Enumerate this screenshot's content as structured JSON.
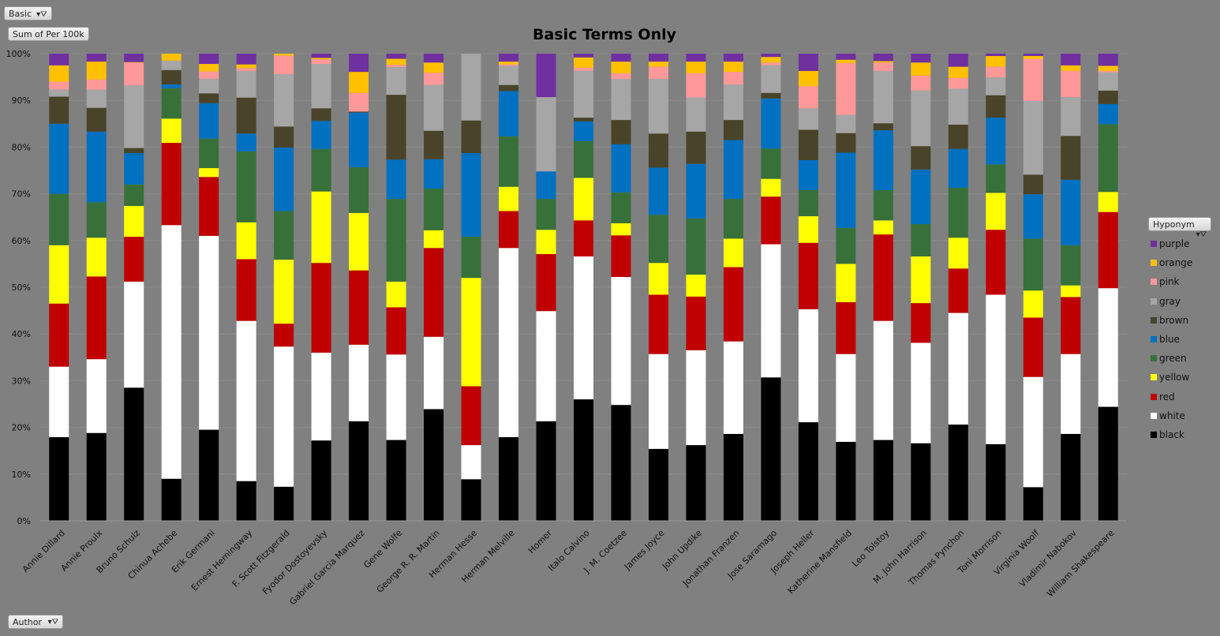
{
  "filters": {
    "report_filter": "Basic",
    "value_field": "Sum of Per 100k",
    "legend_field": "Hyponym",
    "axis_field": "Author"
  },
  "chart_data": {
    "type": "bar",
    "stacked": "percent",
    "title": "Basic Terms Only",
    "xlabel": "",
    "ylabel": "",
    "ylim": [
      0,
      100
    ],
    "yticks": [
      "0%",
      "10%",
      "20%",
      "30%",
      "40%",
      "50%",
      "60%",
      "70%",
      "80%",
      "90%",
      "100%"
    ],
    "grid": true,
    "legend_position": "right",
    "categories": [
      "Annie Dillard",
      "Annie Proulx",
      "Bruno Schulz",
      "Chinua Achebe",
      "Erik Germani",
      "Ernest Hemingway",
      "F. Scott Fitzgerald",
      "Fyodor Dostoyevsky",
      "Gabriel Garcia Marquez",
      "Gene Wolfe",
      "George R. R. Martin",
      "Herman Hesse",
      "Herman Melville",
      "Homer",
      "Italo Calvino",
      "J. M. Coetzee",
      "James Joyce",
      "John Updike",
      "Jonathan Franzen",
      "Jose Saramago",
      "Joseph Heller",
      "Katherine Mansfield",
      "Leo Tolstoy",
      "M. John Harrison",
      "Thomas Pynchon",
      "Toni Morrison",
      "Virginia Woolf",
      "Vladimir Nabokov",
      "William Shakespeare"
    ],
    "series": [
      {
        "name": "black",
        "color": "#000000",
        "values": [
          17.9,
          18.8,
          28.5,
          9,
          19.5,
          8.5,
          7.3,
          17.2,
          21.3,
          17.3,
          23.9,
          8.9,
          17.9,
          21.3,
          26,
          24.8,
          15.4,
          16.2,
          18.6,
          30.7,
          21.1,
          16.9,
          17.3,
          16.6,
          20.6,
          16.4,
          7.2,
          18.6,
          24.4
        ]
      },
      {
        "name": "white",
        "color": "#ffffff",
        "values": [
          15.1,
          15.8,
          22.7,
          54.3,
          41.5,
          34.3,
          30,
          18.8,
          16.4,
          18.3,
          15.5,
          7.3,
          40.5,
          23.6,
          30.6,
          27.4,
          20.3,
          20.3,
          19.8,
          28.5,
          24.2,
          18.8,
          25.5,
          21.5,
          23.9,
          32,
          23.6,
          17.1,
          25.4
        ]
      },
      {
        "name": "red",
        "color": "#c00000",
        "values": [
          13.5,
          17.7,
          9.6,
          17.6,
          12.6,
          13.2,
          4.9,
          19.2,
          15.9,
          10.1,
          19,
          12.6,
          7.9,
          12.2,
          7.7,
          8.9,
          12.7,
          11.5,
          15.9,
          10.2,
          14.2,
          11.1,
          18.5,
          8.5,
          9.5,
          13.9,
          12.7,
          12.2,
          16.3
        ]
      },
      {
        "name": "yellow",
        "color": "#ffff00",
        "values": [
          12.5,
          8.3,
          6.6,
          5.2,
          1.9,
          7.9,
          13.7,
          15.3,
          12.3,
          5.5,
          3.8,
          23.2,
          5.2,
          5.2,
          9.1,
          2.6,
          6.8,
          4.7,
          6.1,
          3.8,
          5.7,
          8.2,
          3,
          10,
          6.6,
          7.9,
          5.8,
          2.5,
          4.3
        ]
      },
      {
        "name": "green",
        "color": "#38703a",
        "values": [
          11,
          7.6,
          4.6,
          6.5,
          6.3,
          15.2,
          10.4,
          9.1,
          9.8,
          17.7,
          8.9,
          8.8,
          10.8,
          6.6,
          7.9,
          6.6,
          10.3,
          12,
          8.5,
          6.5,
          5.6,
          7.7,
          6.5,
          6.9,
          10.7,
          6.1,
          11.1,
          8.6,
          14.5
        ]
      },
      {
        "name": "blue",
        "color": "#0070c0",
        "values": [
          15,
          15.1,
          6.7,
          0.8,
          7.6,
          3.8,
          13.6,
          6,
          11.7,
          8.4,
          6.3,
          17.9,
          9.7,
          5.9,
          4.2,
          10.3,
          10.1,
          11.7,
          12.6,
          10.7,
          6.4,
          16.1,
          12.8,
          11.7,
          8.3,
          10,
          9.5,
          14,
          4.3
        ]
      },
      {
        "name": "brown",
        "color": "#494429",
        "values": [
          5.8,
          5.1,
          1.1,
          3.1,
          2.1,
          7.7,
          4.5,
          2.7,
          0.2,
          13.9,
          6.1,
          7,
          1.3,
          0,
          0.8,
          5.2,
          7.3,
          6.9,
          4.3,
          1.2,
          6.5,
          4.2,
          1.5,
          5,
          5.2,
          4.8,
          4.2,
          9.4,
          2.9
        ]
      },
      {
        "name": "gray",
        "color": "#a6a6a6",
        "values": [
          1.5,
          3.9,
          13.4,
          2,
          3.1,
          5.7,
          11.2,
          9.5,
          0,
          5.9,
          9.8,
          14.3,
          4.1,
          15.9,
          10,
          8.8,
          11.7,
          7.3,
          7.6,
          5.9,
          4.6,
          3.9,
          11.2,
          11.9,
          7.7,
          3.8,
          15.8,
          8.3,
          3.9
        ]
      },
      {
        "name": "pink",
        "color": "#ff9999",
        "values": [
          1.7,
          2.2,
          4.9,
          0,
          1.6,
          0.6,
          4,
          1,
          4,
          0.5,
          2.6,
          0,
          0.3,
          0,
          0.7,
          1.2,
          2.6,
          5.2,
          2.7,
          0.6,
          4.7,
          11.1,
          1.8,
          3.2,
          2.3,
          2.3,
          9,
          5.6,
          0.3
        ]
      },
      {
        "name": "orange",
        "color": "#ffc000",
        "values": [
          3.5,
          3.8,
          0.1,
          1.5,
          1.6,
          0.8,
          0.4,
          0.3,
          4.5,
          1.3,
          2.2,
          0,
          0.6,
          0,
          2.2,
          2.5,
          1.1,
          2.5,
          2.2,
          1.2,
          3.3,
          0.7,
          0.3,
          2.8,
          2.4,
          2.3,
          0.6,
          1.2,
          1.1
        ]
      },
      {
        "name": "purple",
        "color": "#7030a0",
        "values": [
          2.5,
          1.7,
          1.8,
          0,
          2.2,
          2.3,
          0,
          0.9,
          3.9,
          1.1,
          1.9,
          0,
          1.7,
          9.3,
          0.8,
          1.7,
          1.7,
          1.7,
          1.7,
          0.7,
          3.7,
          1.3,
          1.6,
          1.9,
          2.8,
          0.5,
          0.5,
          2.5,
          2.6
        ]
      }
    ]
  }
}
